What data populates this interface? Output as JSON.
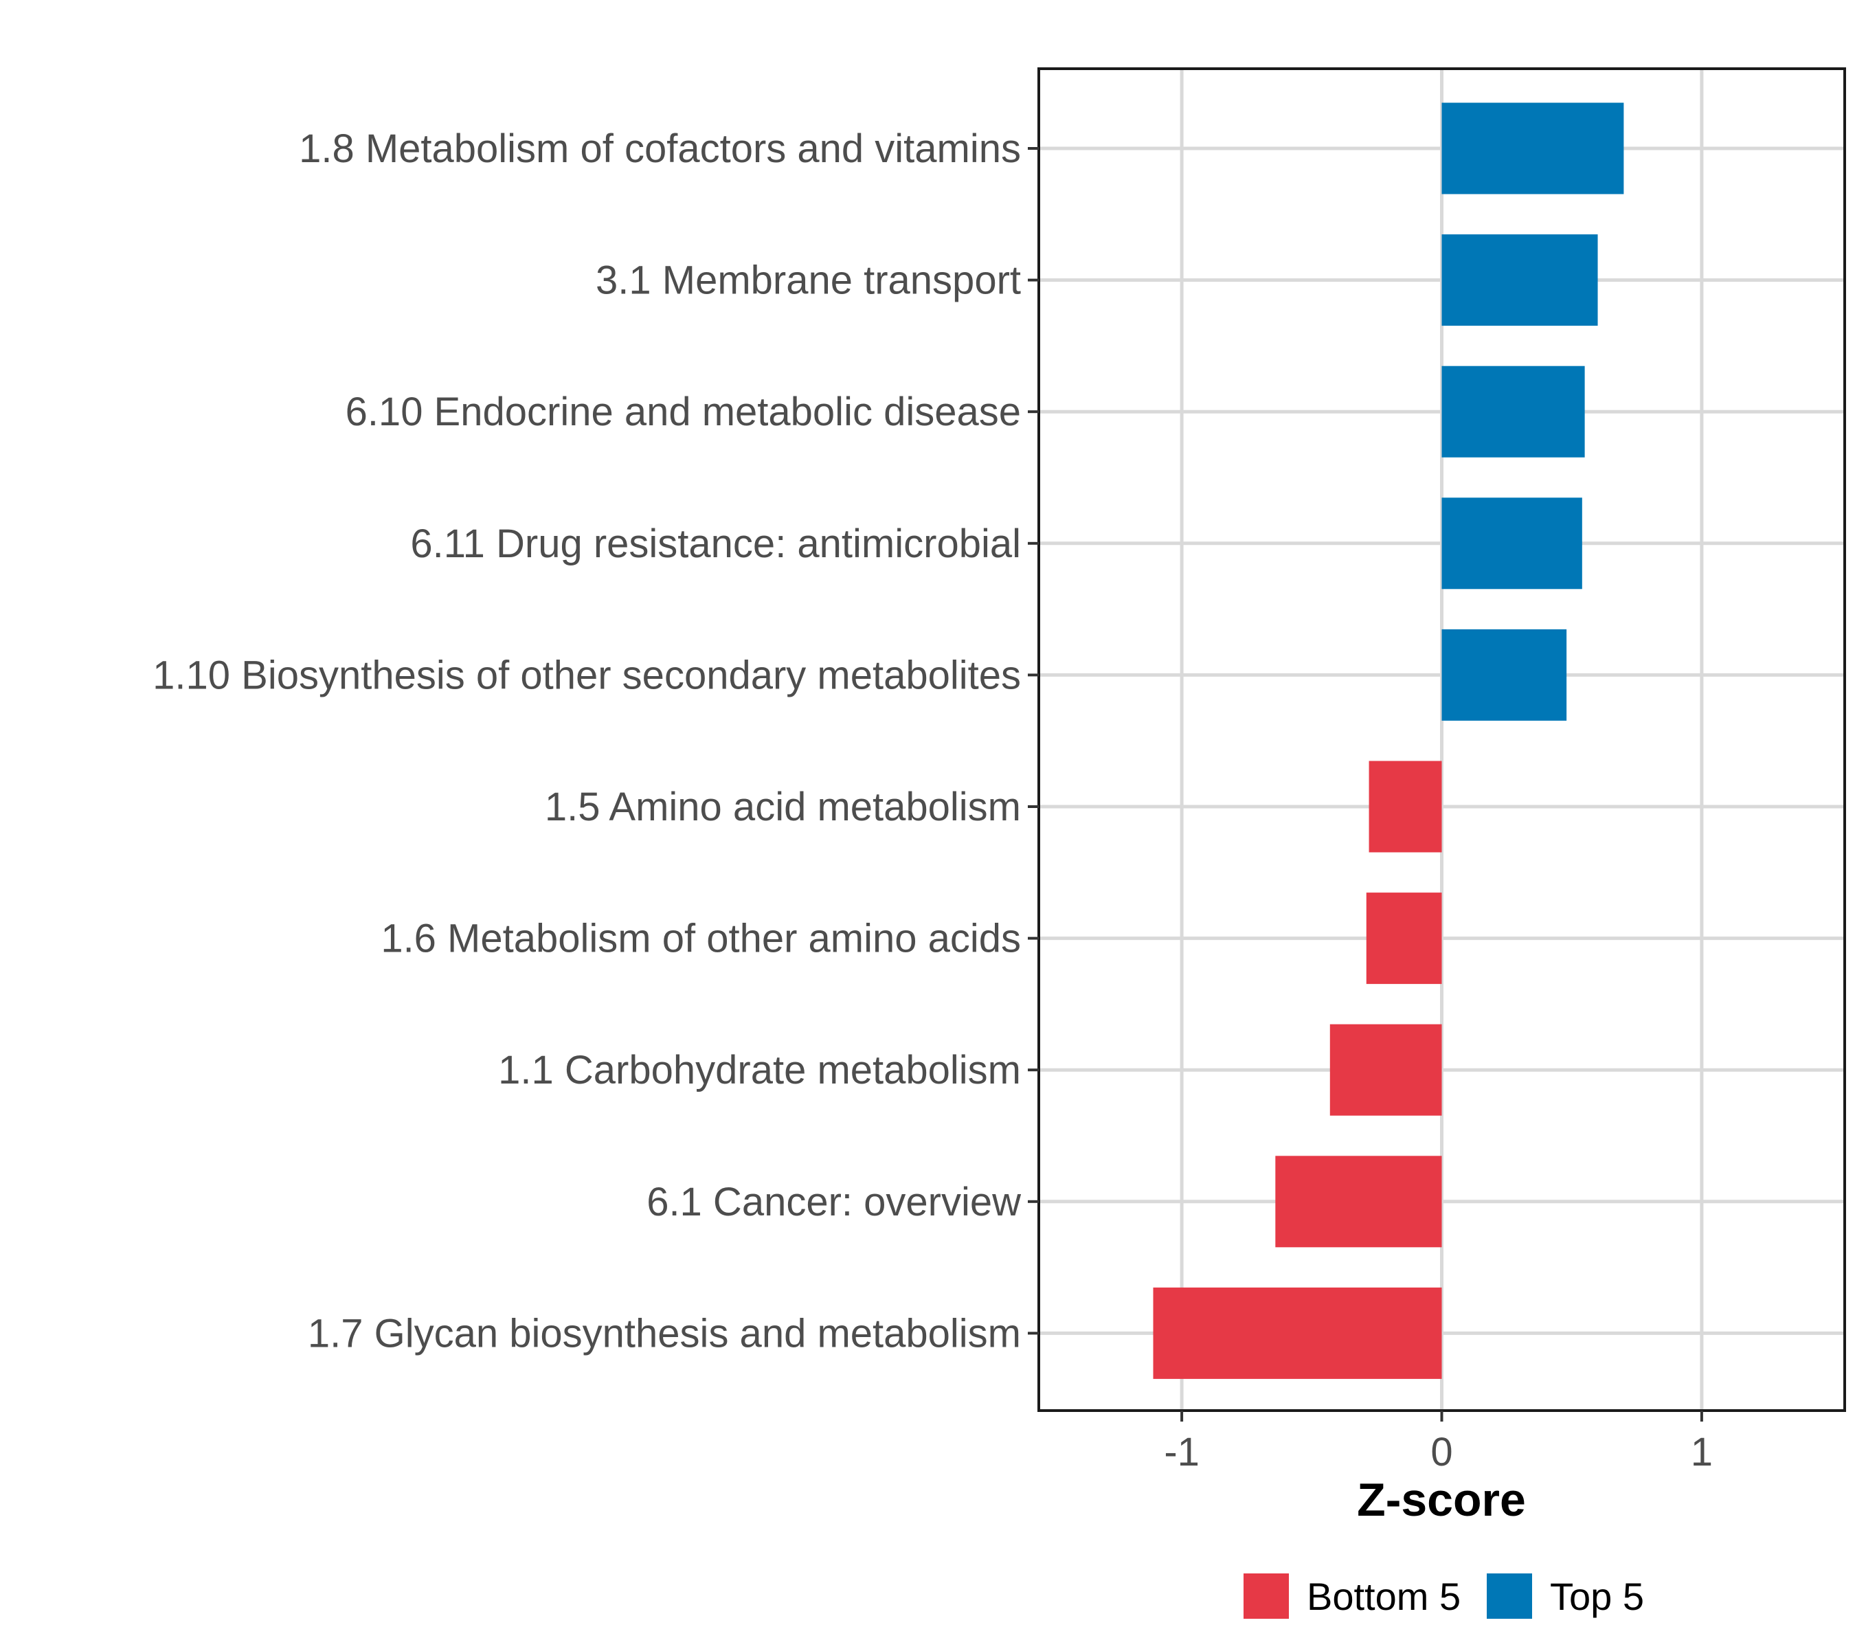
{
  "chart_data": {
    "type": "bar",
    "orientation": "horizontal",
    "xlabel": "Z-score",
    "xlim": [
      -1.55,
      1.55
    ],
    "xticks": [
      -1,
      0,
      1
    ],
    "xtick_labels": [
      "-1",
      "0",
      "1"
    ],
    "grid": true,
    "legend_position": "bottom",
    "categories": [
      "1.8 Metabolism of cofactors and vitamins",
      "3.1 Membrane transport",
      "6.10 Endocrine and metabolic disease",
      "6.11 Drug resistance: antimicrobial",
      "1.10 Biosynthesis of other secondary metabolites",
      "1.5 Amino acid metabolism",
      "1.6 Metabolism of other amino acids",
      "1.1 Carbohydrate metabolism",
      "6.1 Cancer: overview",
      "1.7 Glycan biosynthesis and metabolism"
    ],
    "values": [
      0.7,
      0.6,
      0.55,
      0.54,
      0.48,
      -0.28,
      -0.29,
      -0.43,
      -0.64,
      -1.11
    ],
    "groups": [
      "Top 5",
      "Top 5",
      "Top 5",
      "Top 5",
      "Top 5",
      "Bottom 5",
      "Bottom 5",
      "Bottom 5",
      "Bottom 5",
      "Bottom 5"
    ],
    "legend": [
      {
        "name": "Bottom 5",
        "color": "#e63946"
      },
      {
        "name": "Top 5",
        "color": "#0077b6"
      }
    ]
  }
}
